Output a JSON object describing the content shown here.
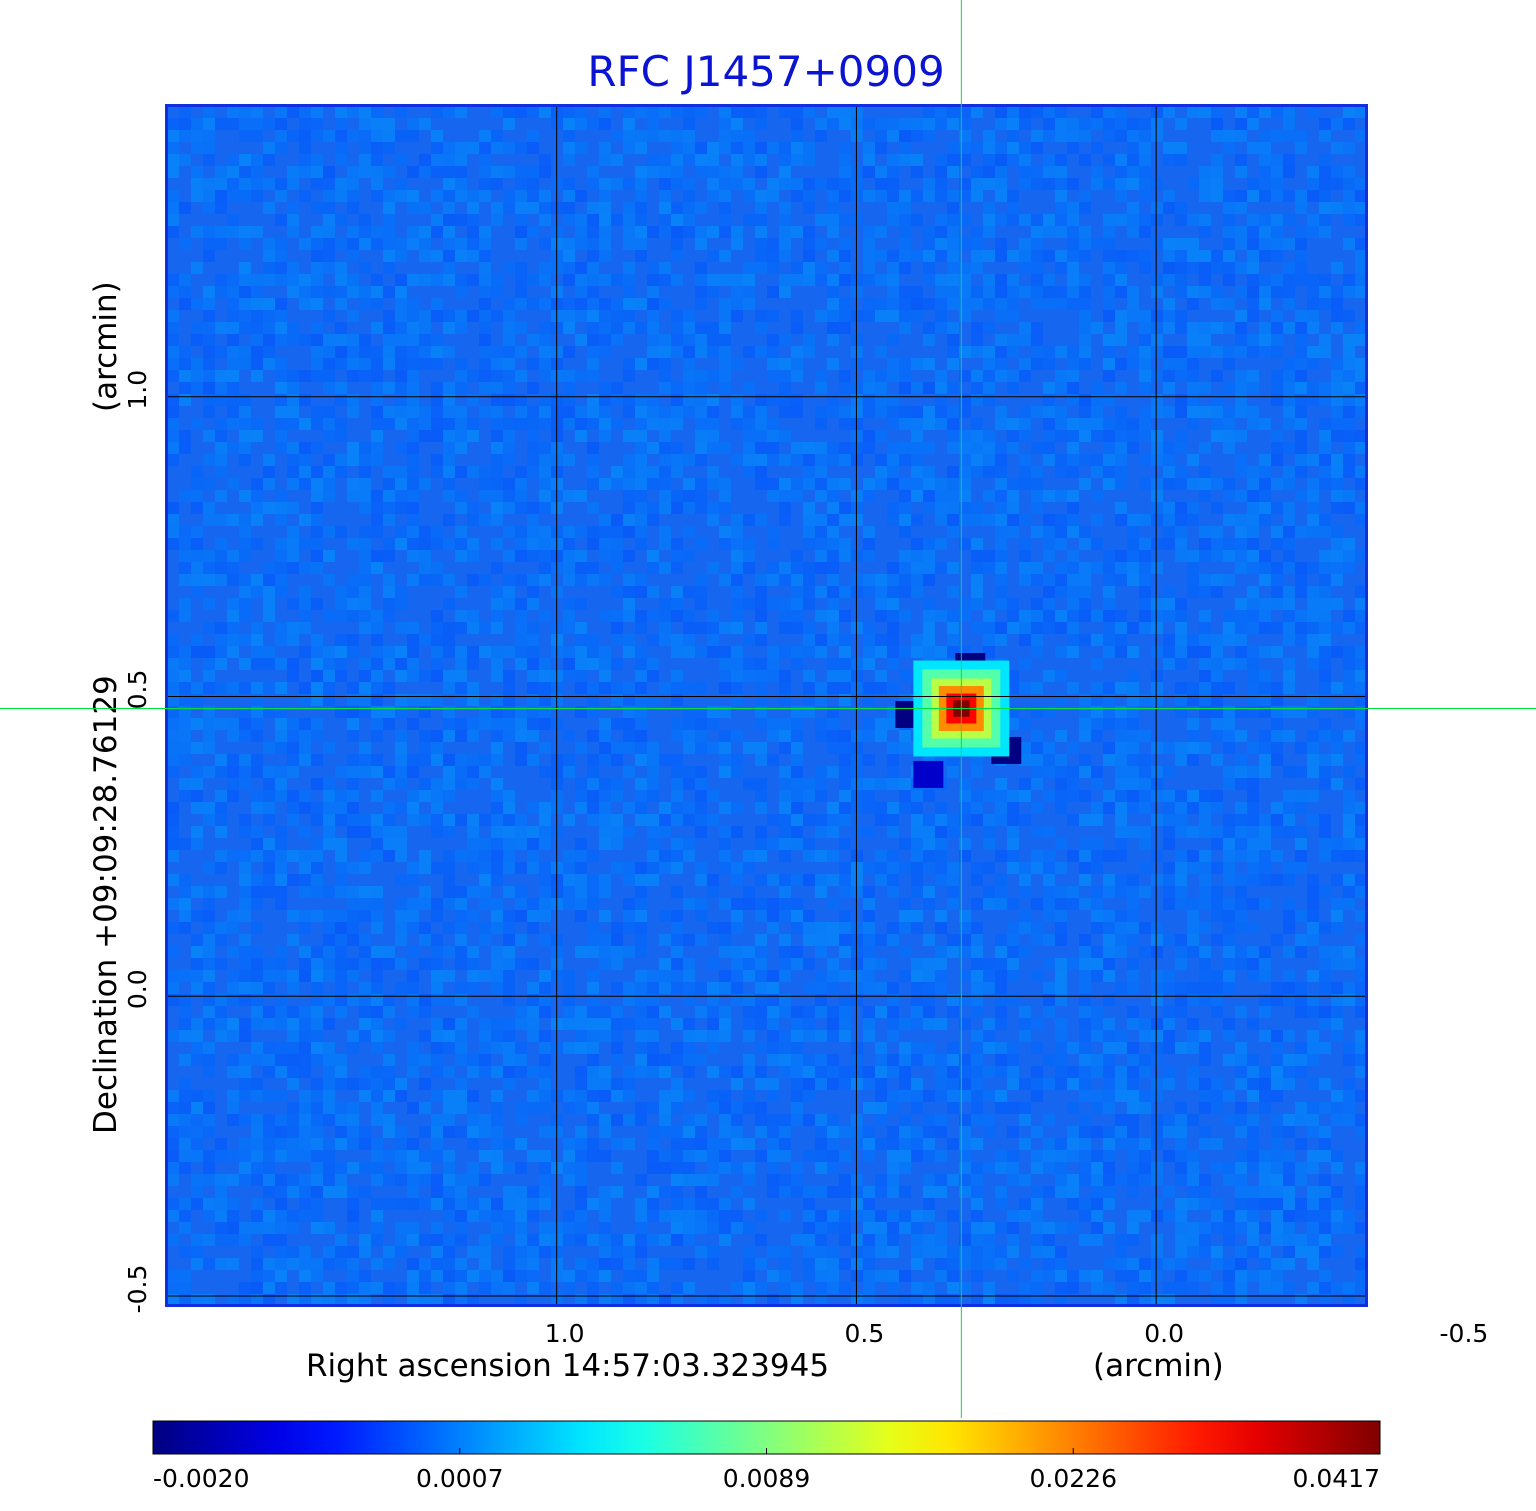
{
  "chart_data": {
    "type": "heatmap",
    "title": "RFC J1457+0909",
    "title_color": "#0a14d2",
    "xlabel_left": "Right ascension  14:57:03.323945",
    "xlabel_right": "(arcmin)",
    "ylabel_left": "Declination  +09:09:28.76129",
    "ylabel_right": "(arcmin)",
    "x_axis": {
      "unit": "arcmin",
      "direction": "reversed",
      "range": [
        1.65,
        -0.35
      ],
      "ticks": [
        1.0,
        0.5,
        0.0,
        -0.5
      ],
      "tick_labels": [
        "1.0",
        "0.5",
        "0.0",
        "-0.5"
      ]
    },
    "y_axis": {
      "unit": "arcmin",
      "range": [
        -0.515,
        1.485
      ],
      "ticks": [
        -0.5,
        0.0,
        0.5,
        1.0
      ],
      "tick_labels": [
        "-0.5",
        "0.0",
        "0.5",
        "1.0"
      ]
    },
    "grid": true,
    "grid_color": "#000000",
    "crosshair": {
      "x": 0.325,
      "y": 0.48,
      "color": "#00e040"
    },
    "frame_color": "#1030e0",
    "colormap": "jet",
    "colorbar": {
      "position": "bottom",
      "tick_values": [
        -0.002,
        0.0007,
        0.0089,
        0.0226,
        0.0417
      ],
      "tick_labels": [
        "-0.0020",
        "0.0007",
        "0.0089",
        "0.0226",
        "0.0417"
      ]
    },
    "background_level": 0.0,
    "source": {
      "x": 0.325,
      "y": 0.48,
      "peak": 0.0417
    },
    "negative_lobes": [
      {
        "x": 0.31,
        "y": 0.55,
        "value": -0.002
      },
      {
        "x": 0.41,
        "y": 0.47,
        "value": -0.002
      },
      {
        "x": 0.25,
        "y": 0.41,
        "value": -0.002
      },
      {
        "x": 0.38,
        "y": 0.37,
        "value": -0.0012
      }
    ]
  }
}
